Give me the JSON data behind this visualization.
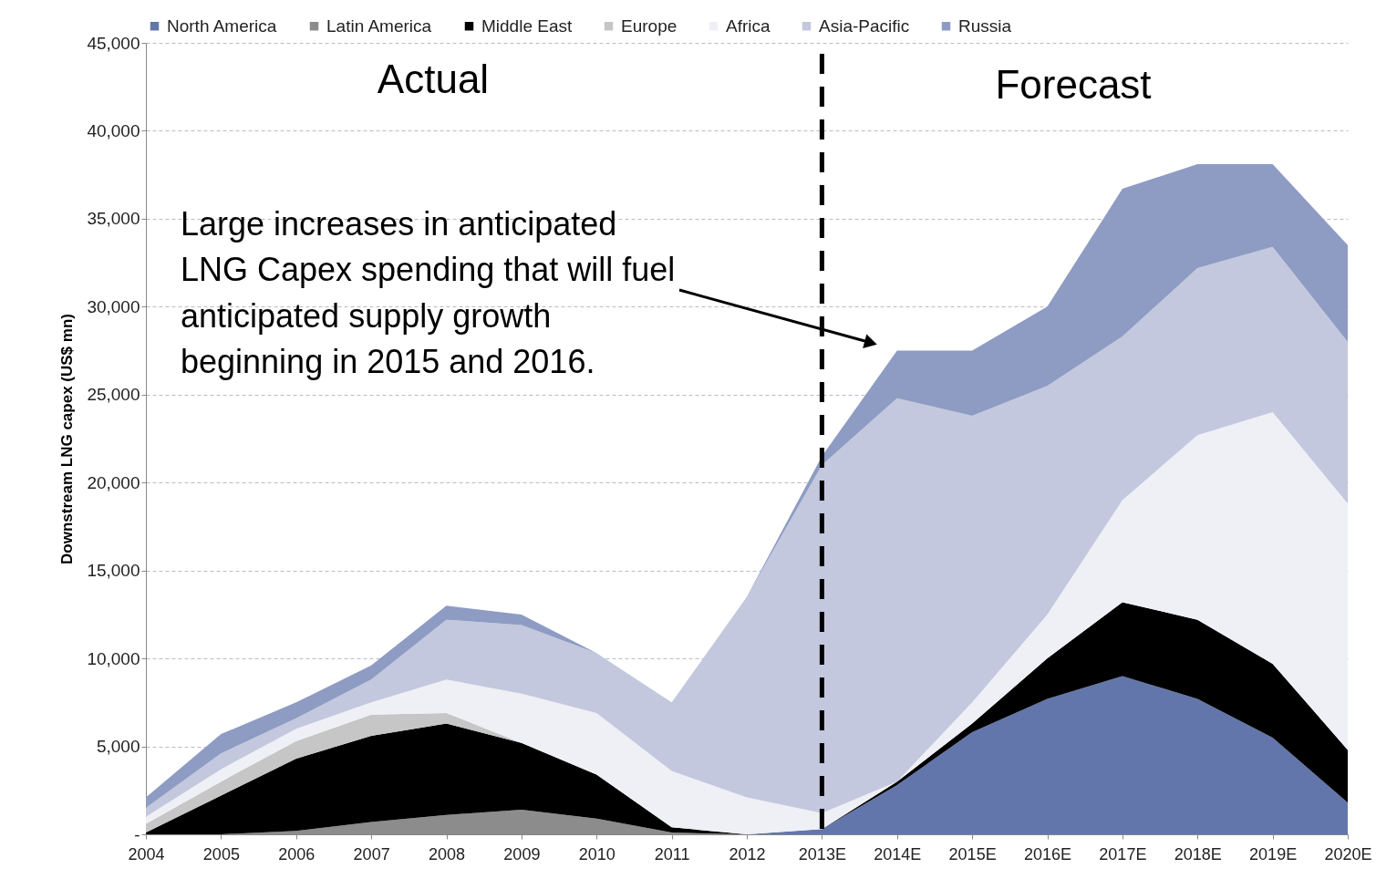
{
  "chart_data": {
    "type": "area",
    "stacked": true,
    "ylabel": "Downstream LNG capex (US$ mn)",
    "categories": [
      "2004",
      "2005",
      "2006",
      "2007",
      "2008",
      "2009",
      "2010",
      "2011",
      "2012",
      "2013E",
      "2014E",
      "2015E",
      "2016E",
      "2017E",
      "2018E",
      "2019E",
      "2020E"
    ],
    "series": [
      {
        "name": "North America",
        "color": "#6276ab",
        "values": [
          null,
          null,
          null,
          null,
          null,
          null,
          null,
          null,
          0,
          300,
          2800,
          5800,
          7700,
          9000,
          7700,
          5500,
          1800
        ]
      },
      {
        "name": "Latin America",
        "color": "#8c8c8c",
        "values": [
          null,
          0,
          200,
          700,
          1100,
          1400,
          900,
          100,
          0,
          null,
          null,
          null,
          null,
          null,
          null,
          null,
          null
        ]
      },
      {
        "name": "Middle East",
        "color": "#000000",
        "values": [
          100,
          2200,
          4100,
          4900,
          5200,
          3800,
          2500,
          300,
          0,
          0,
          200,
          500,
          2300,
          4200,
          4500,
          4200,
          3000
        ]
      },
      {
        "name": "Europe",
        "color": "#c6c6c6",
        "values": [
          500,
          800,
          1000,
          1200,
          600,
          0,
          null,
          null,
          null,
          null,
          null,
          null,
          null,
          null,
          null,
          null,
          null
        ]
      },
      {
        "name": "Africa",
        "color": "#eef0f5",
        "values": [
          400,
          700,
          700,
          700,
          1900,
          2800,
          3500,
          3200,
          2100,
          900,
          0,
          1200,
          2500,
          5800,
          10500,
          14300,
          14000
        ]
      },
      {
        "name": "Asia-Pacific",
        "color": "#c3c8de",
        "values": [
          500,
          900,
          600,
          1300,
          3400,
          3900,
          3400,
          3900,
          11400,
          19800,
          21800,
          16300,
          13000,
          9300,
          9500,
          9400,
          9200
        ]
      },
      {
        "name": "Russia",
        "color": "#8e9cc3",
        "values": [
          600,
          1100,
          900,
          800,
          800,
          600,
          0,
          0,
          0,
          500,
          2700,
          3700,
          4500,
          8400,
          5900,
          4700,
          5500
        ]
      }
    ],
    "ylim": [
      0,
      45000
    ],
    "yticks": [
      {
        "value": 0,
        "label": "-"
      },
      {
        "value": 5000,
        "label": "5,000"
      },
      {
        "value": 10000,
        "label": "10,000"
      },
      {
        "value": 15000,
        "label": "15,000"
      },
      {
        "value": 20000,
        "label": "20,000"
      },
      {
        "value": 25000,
        "label": "25,000"
      },
      {
        "value": 30000,
        "label": "30,000"
      },
      {
        "value": 35000,
        "label": "35,000"
      },
      {
        "value": 40000,
        "label": "40,000"
      },
      {
        "value": 45000,
        "label": "45,000"
      }
    ],
    "grid": "y",
    "legend": "top",
    "ref_lines": [
      {
        "axis": "x",
        "value": "2013E",
        "line_style": "dashed",
        "color": "#000000"
      }
    ],
    "annotations": [
      "Actual",
      "Forecast",
      "Large increases in anticipated\nLNG Capex spending that will fuel\nanticipated supply growth\nbeginning in 2015 and 2016."
    ]
  }
}
